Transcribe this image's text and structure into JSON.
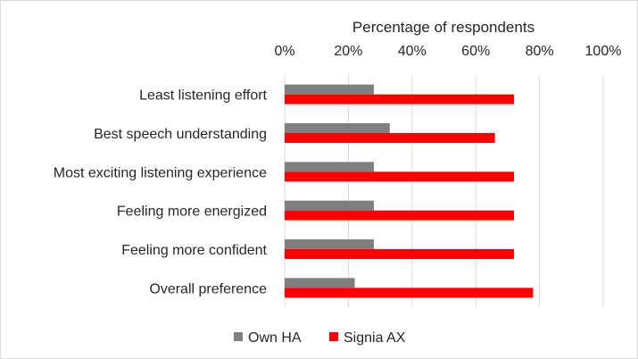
{
  "chart_data": {
    "type": "bar",
    "orientation": "horizontal",
    "title": "",
    "xlabel": "Percentage of respondents",
    "ylabel": "",
    "xaxis_position": "top",
    "xlim": [
      0,
      100
    ],
    "x_ticks": [
      0,
      20,
      40,
      60,
      80,
      100
    ],
    "x_tick_labels": [
      "0%",
      "20%",
      "40%",
      "60%",
      "80%",
      "100%"
    ],
    "grid": true,
    "legend_position": "bottom",
    "categories": [
      "Least listening effort",
      "Best speech understanding",
      "Most exciting listening experience",
      "Feeling more energized",
      "Feeling more confident",
      "Overall preference"
    ],
    "series": [
      {
        "name": "Own HA",
        "color": "#7f7f7f",
        "values": [
          28,
          33,
          28,
          28,
          28,
          22
        ]
      },
      {
        "name": "Signia AX",
        "color": "#ff0000",
        "values": [
          72,
          66,
          72,
          72,
          72,
          78
        ]
      }
    ]
  }
}
